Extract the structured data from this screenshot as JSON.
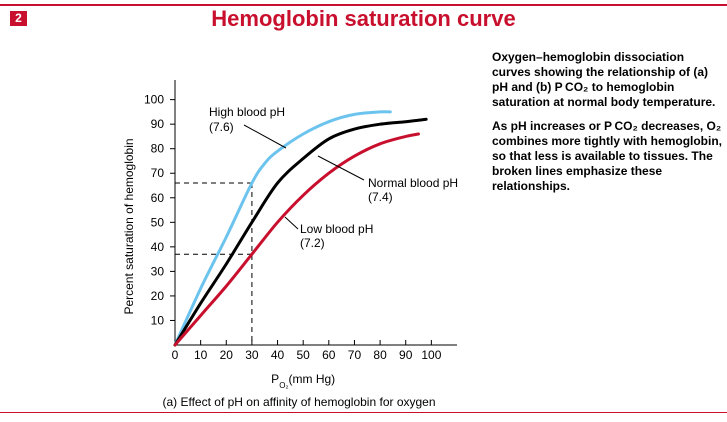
{
  "header": {
    "figure_number": "2",
    "title": "Hemoglobin saturation curve"
  },
  "description": {
    "para1": "Oxygen–hemoglobin dissociation curves showing the relationship of (a) pH and (b) P CO₂ to hemoglobin saturation at normal body temperature.",
    "para2": "As pH increases or P CO₂ decreases, O₂ combines more tightly with hemoglobin, so that less is available to tissues. The broken lines emphasize these relationships."
  },
  "colors": {
    "accent": "#c8102e",
    "high": "#6cc4ee",
    "normal": "#000000",
    "low": "#c8102e"
  },
  "chart_data": {
    "type": "line",
    "caption": "(a) Effect of pH on affinity of hemoglobin for oxygen",
    "xlabel": "P O₂ (mm Hg)",
    "ylabel": "Percent saturation of hemoglobin",
    "xlim": [
      0,
      110
    ],
    "ylim": [
      0,
      108
    ],
    "xticks": [
      0,
      10,
      20,
      30,
      40,
      50,
      60,
      70,
      80,
      90,
      100
    ],
    "yticks": [
      10,
      20,
      30,
      40,
      50,
      60,
      70,
      80,
      90,
      100
    ],
    "grid": false,
    "series": [
      {
        "name": "High blood pH",
        "sub": "(7.6)",
        "x": [
          0,
          10,
          20,
          30,
          35,
          40,
          50,
          60,
          70,
          80,
          84
        ],
        "y": [
          0,
          23,
          44,
          66,
          74,
          79,
          86,
          91,
          94,
          95,
          95
        ]
      },
      {
        "name": "Normal blood pH",
        "sub": "(7.4)",
        "x": [
          0,
          10,
          20,
          30,
          40,
          50,
          60,
          70,
          80,
          90,
          98
        ],
        "y": [
          0,
          17,
          33,
          50,
          66,
          76,
          84,
          88,
          90,
          91,
          92
        ]
      },
      {
        "name": "Low blood pH",
        "sub": "(7.2)",
        "x": [
          0,
          10,
          20,
          30,
          40,
          50,
          60,
          70,
          80,
          90,
          95
        ],
        "y": [
          0,
          12,
          24,
          37,
          50,
          61,
          70,
          77,
          82,
          85,
          86
        ]
      }
    ],
    "reference_lines": [
      {
        "x": 30,
        "y": 66
      },
      {
        "x": 30,
        "y": 37
      }
    ]
  }
}
